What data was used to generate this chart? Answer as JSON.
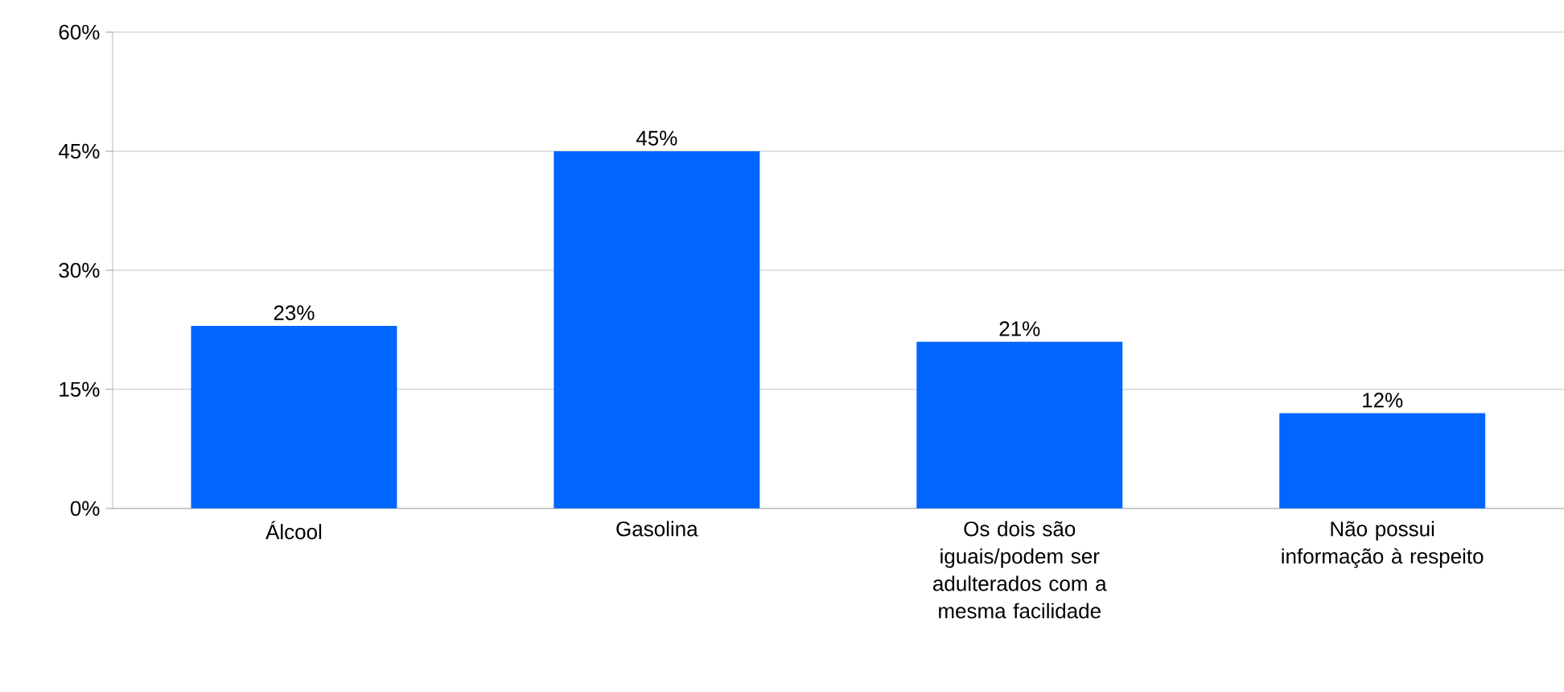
{
  "chart_data": {
    "type": "bar",
    "categories": [
      "Álcool",
      "Gasolina",
      "Os dois são iguais/podem ser adulterados com a mesma facilidade",
      "Não possui informação à respeito"
    ],
    "values": [
      23,
      45,
      21,
      12
    ],
    "value_labels": [
      "23%",
      "45%",
      "21%",
      "12%"
    ],
    "color": "#0066ff",
    "ylim": [
      0,
      60
    ],
    "yticks": [
      {
        "value": 0,
        "label": "0%"
      },
      {
        "value": 15,
        "label": "15%"
      },
      {
        "value": 30,
        "label": "30%"
      },
      {
        "value": 45,
        "label": "45%"
      },
      {
        "value": 60,
        "label": "60%"
      }
    ],
    "grid": "y"
  }
}
